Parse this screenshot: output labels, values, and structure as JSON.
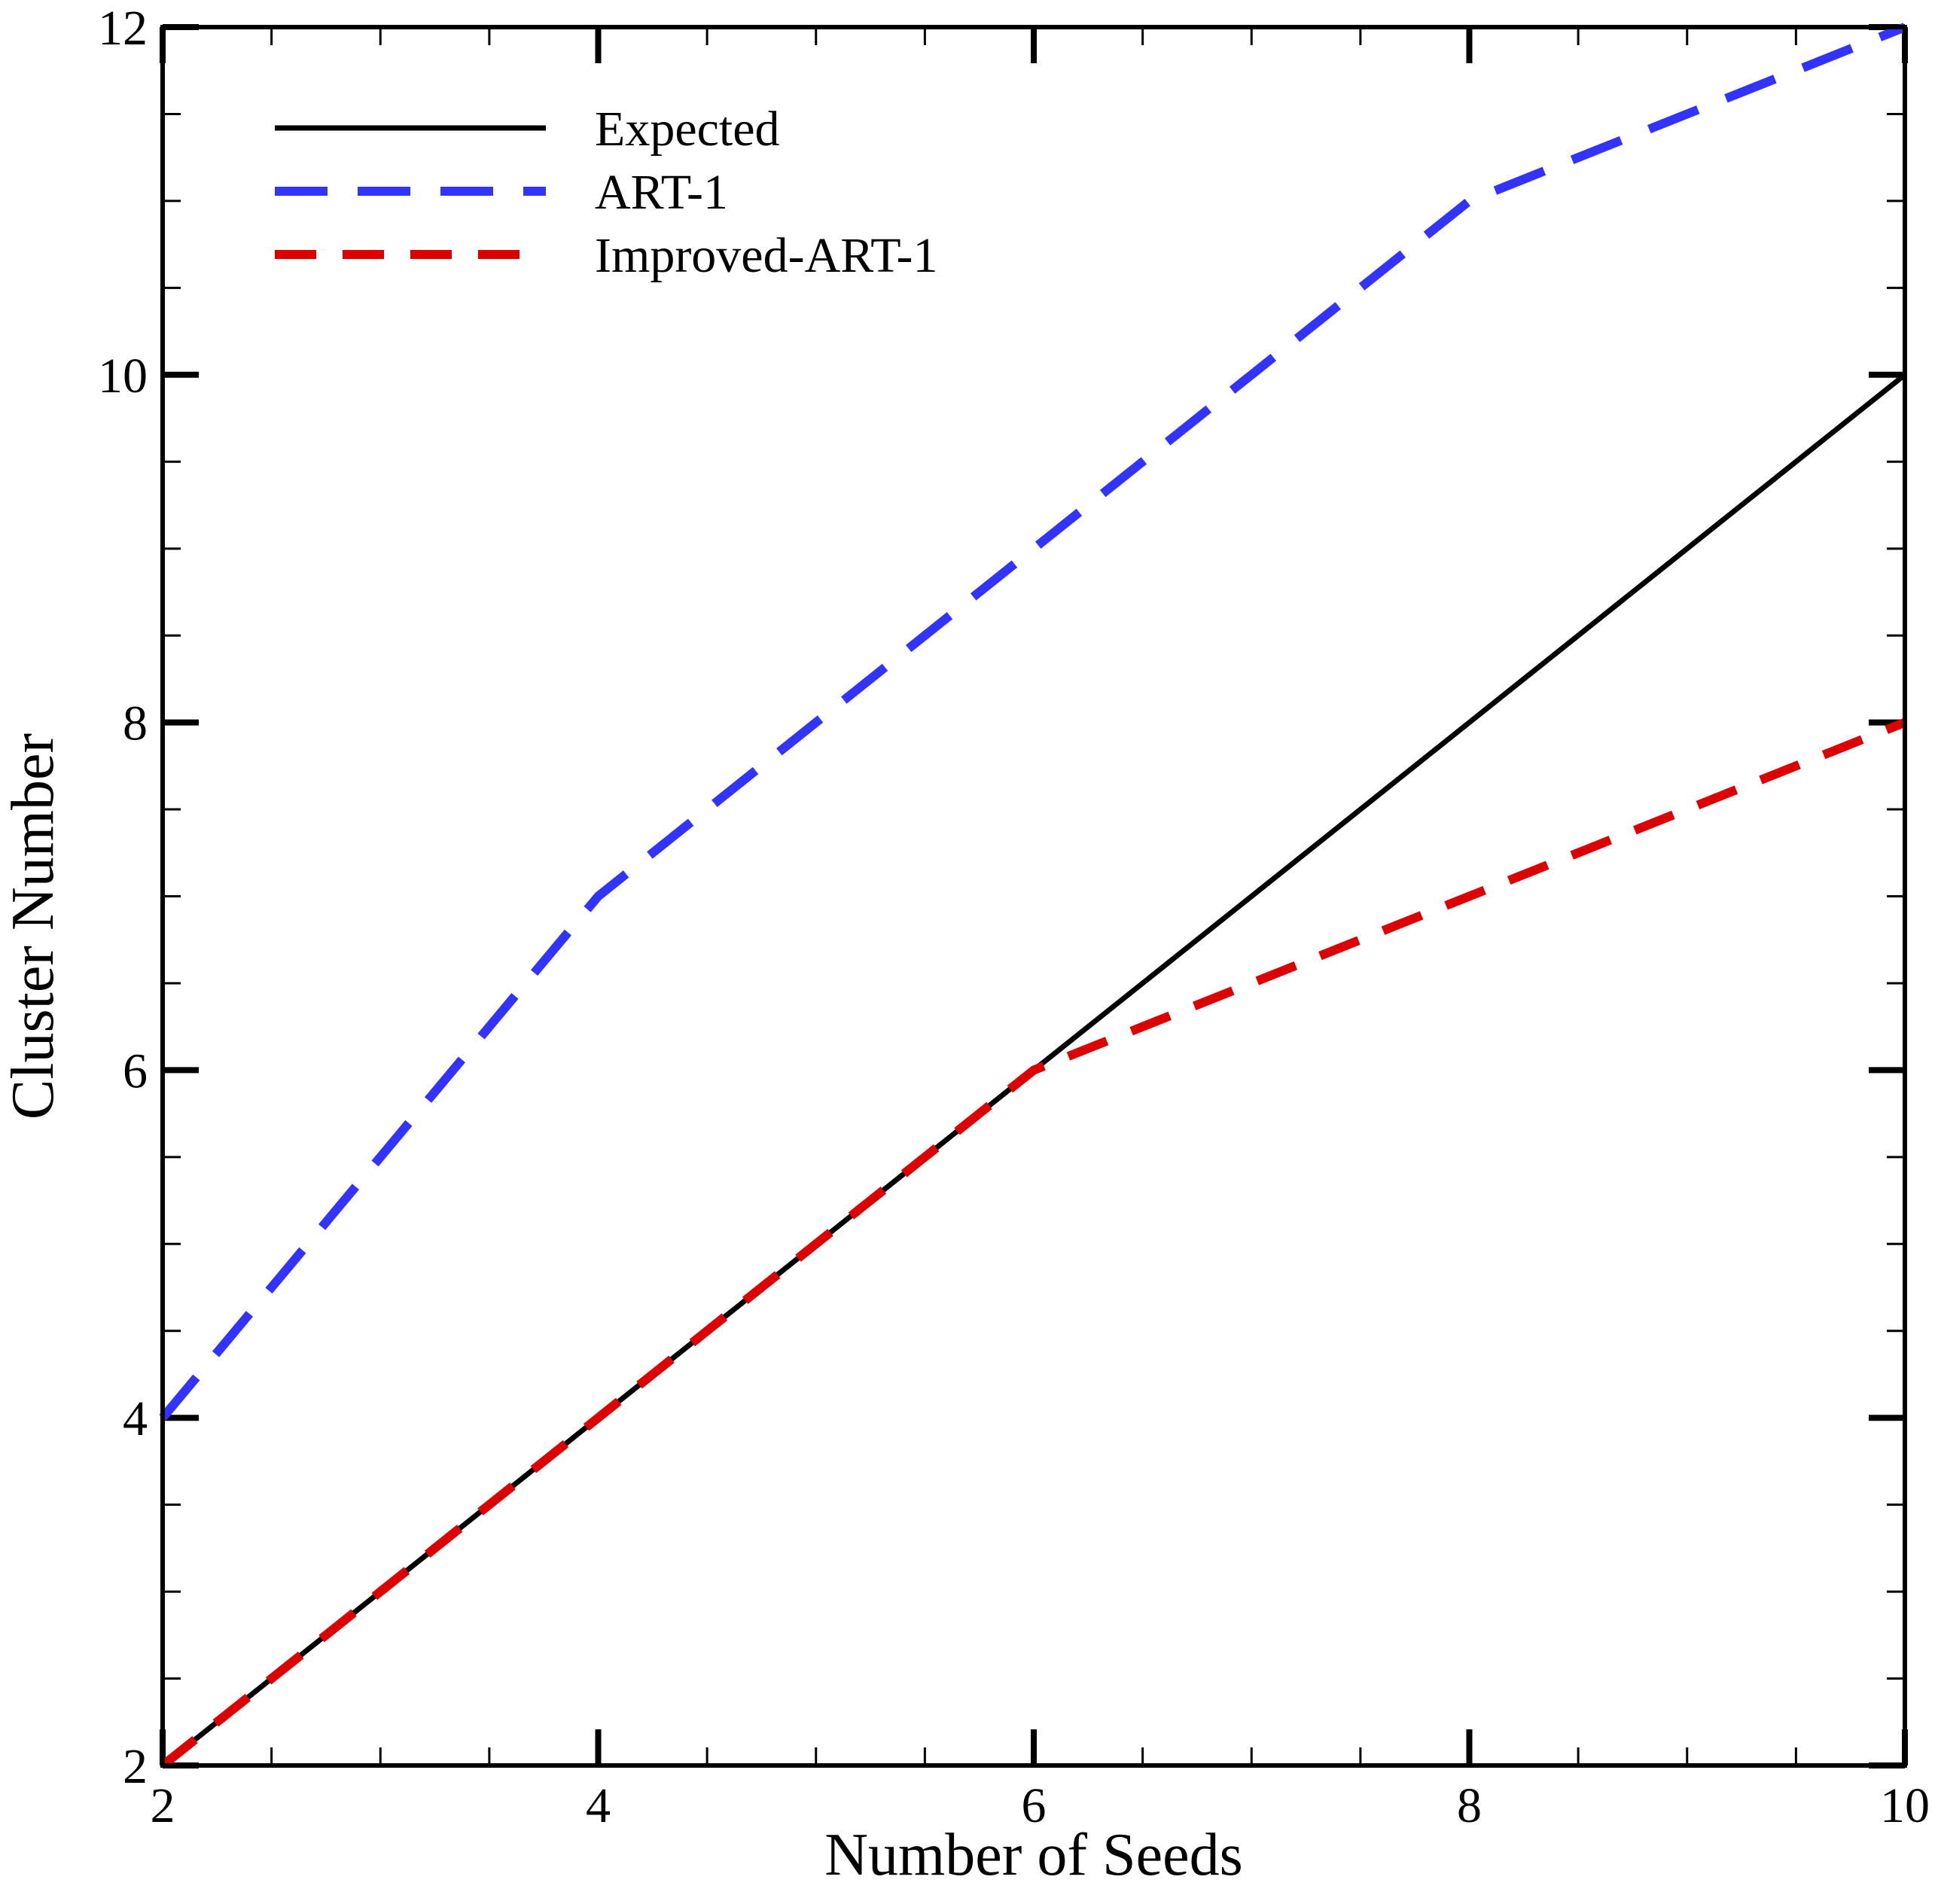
{
  "chart_data": {
    "type": "line",
    "title": "",
    "xlabel": "Number of Seeds",
    "ylabel": "Cluster Number",
    "xlim": [
      2,
      10
    ],
    "ylim": [
      2,
      12
    ],
    "x_ticks": [
      2,
      4,
      6,
      8,
      10
    ],
    "y_ticks": [
      2,
      4,
      6,
      8,
      10,
      12
    ],
    "x_tick_labels": [
      "2",
      "4",
      "6",
      "8",
      "10"
    ],
    "y_tick_labels": [
      "2",
      "4",
      "6",
      "8",
      "10",
      "12"
    ],
    "x_minor_step": 0.5,
    "y_minor_step": 0.5,
    "grid": false,
    "legend_position": "top-left",
    "series": [
      {
        "name": "Expected",
        "style": "solid",
        "color": "#000000",
        "x": [
          2,
          4,
          6,
          8,
          10
        ],
        "y": [
          2,
          4,
          6,
          8,
          10
        ]
      },
      {
        "name": "ART-1",
        "style": "dashed",
        "color": "#3333ff",
        "x": [
          2,
          3,
          4,
          5,
          6,
          7,
          8,
          9,
          10
        ],
        "y": [
          4,
          5.5,
          7,
          8,
          9,
          10,
          11,
          11.5,
          12
        ]
      },
      {
        "name": "Improved-ART-1",
        "style": "dashed",
        "color": "#dd0000",
        "x": [
          2,
          4,
          6,
          7,
          8,
          9,
          10
        ],
        "y": [
          2,
          4,
          6,
          6.5,
          7,
          7.5,
          8
        ]
      }
    ]
  }
}
